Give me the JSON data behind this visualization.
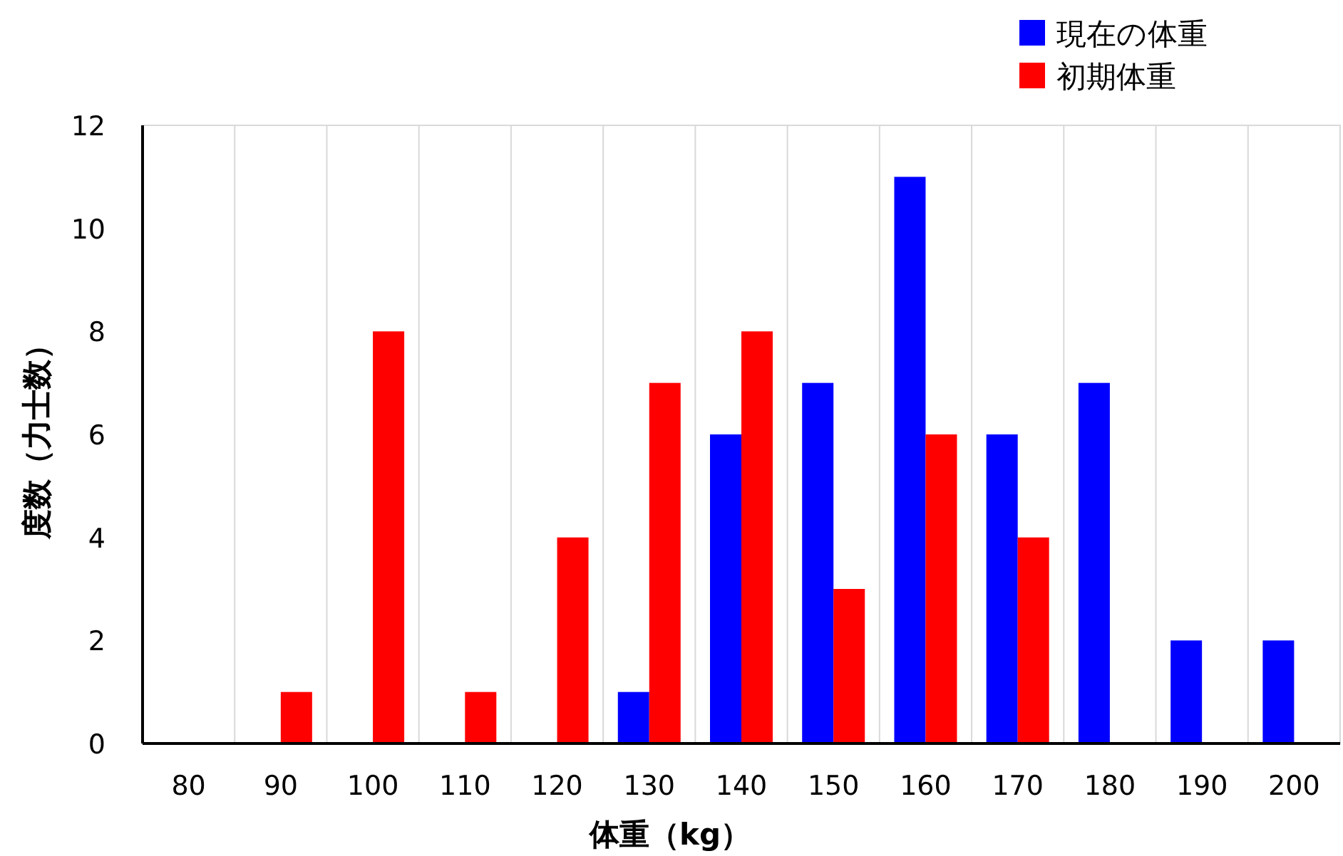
{
  "chart_data": {
    "type": "bar",
    "xlabel": "体重（kg）",
    "ylabel": "度数（力士数）",
    "categories": [
      "80",
      "90",
      "100",
      "110",
      "120",
      "130",
      "140",
      "150",
      "160",
      "170",
      "180",
      "190",
      "200"
    ],
    "series": [
      {
        "name": "現在の体重",
        "color": "#0000ff",
        "values": [
          0,
          0,
          0,
          0,
          0,
          1,
          6,
          7,
          11,
          6,
          7,
          2,
          2
        ]
      },
      {
        "name": "初期体重",
        "color": "#ff0000",
        "values": [
          0,
          1,
          8,
          1,
          4,
          7,
          8,
          3,
          6,
          4,
          0,
          0,
          0
        ]
      }
    ],
    "ylim": [
      0,
      12
    ],
    "yticks": [
      0,
      2,
      4,
      6,
      8,
      10,
      12
    ],
    "grid": "x",
    "legend": "top right"
  }
}
